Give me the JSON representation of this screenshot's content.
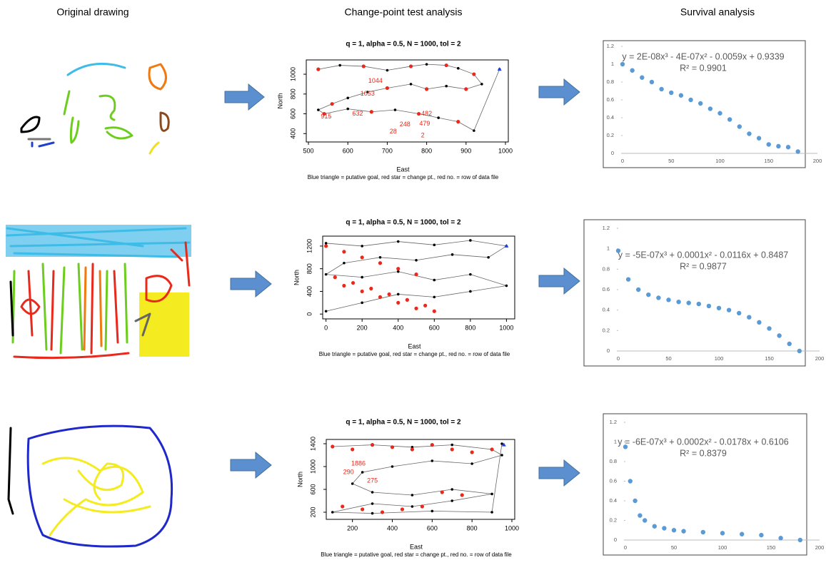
{
  "headers": [
    "Original drawing",
    "Change-point test analysis",
    "Survival analysis"
  ],
  "chart_data": [
    {
      "type": "line",
      "title": "q = 1, alpha = 0.5, N = 1000, tol = 2",
      "x_label": "East",
      "y_label": "North",
      "caption": "Blue triangle = putative goal, red star = change pt., red no. = row of data file",
      "xlim": [
        480,
        1000
      ],
      "ylim": [
        330,
        1130
      ],
      "xticks": [
        500,
        600,
        700,
        800,
        900,
        1000
      ],
      "yticks": [
        400,
        600,
        800,
        1000
      ],
      "series": [
        {
          "name": "path",
          "color": "#000000",
          "x": [
            525,
            580,
            640,
            700,
            760,
            800,
            850,
            880,
            920,
            940,
            900,
            850,
            800,
            760,
            700,
            650,
            600,
            560,
            525,
            540,
            600,
            660,
            720,
            780,
            830,
            880,
            920,
            985
          ],
          "values": [
            1050,
            1090,
            1080,
            1040,
            1080,
            1100,
            1090,
            1060,
            1000,
            900,
            850,
            880,
            850,
            900,
            860,
            820,
            760,
            700,
            640,
            600,
            650,
            620,
            640,
            600,
            560,
            520,
            430,
            1050
          ]
        },
        {
          "name": "change points",
          "color": "#e8291c",
          "x": [
            525,
            640,
            760,
            850,
            920,
            900,
            800,
            700,
            560,
            540,
            660,
            780,
            880
          ],
          "values": [
            1050,
            1080,
            1080,
            1090,
            1000,
            850,
            850,
            860,
            700,
            600,
            620,
            600,
            520
          ]
        }
      ],
      "goal": {
        "x": 985,
        "y": 1050,
        "color": "#2040e0"
      },
      "annotations": [
        {
          "text": "1044",
          "x": 670,
          "y": 930
        },
        {
          "text": "1053",
          "x": 650,
          "y": 800
        },
        {
          "text": "632",
          "x": 625,
          "y": 600
        },
        {
          "text": "482",
          "x": 800,
          "y": 600
        },
        {
          "text": "479",
          "x": 795,
          "y": 500
        },
        {
          "text": "248",
          "x": 745,
          "y": 490
        },
        {
          "text": "28",
          "x": 715,
          "y": 420
        },
        {
          "text": "2",
          "x": 790,
          "y": 380
        },
        {
          "text": "915",
          "x": 545,
          "y": 570
        }
      ]
    },
    {
      "type": "scatter",
      "annotations": [
        "y = 2E-08x³ - 4E-07x² - 0.0059x + 0.9339",
        "R² = 0.9901"
      ],
      "xlim": [
        0,
        200
      ],
      "ylim": [
        0,
        1.2
      ],
      "xticks": [
        0,
        50,
        100,
        150,
        200
      ],
      "yticks": [
        0,
        0.2,
        0.4,
        0.6,
        0.8,
        1,
        1.2
      ],
      "color": "#5b9bd5",
      "x": [
        0,
        10,
        20,
        30,
        40,
        50,
        60,
        70,
        80,
        90,
        100,
        110,
        120,
        130,
        140,
        150,
        160,
        170,
        180
      ],
      "values": [
        1,
        0.93,
        0.85,
        0.8,
        0.72,
        0.68,
        0.65,
        0.6,
        0.56,
        0.5,
        0.45,
        0.38,
        0.3,
        0.22,
        0.17,
        0.1,
        0.08,
        0.07,
        0.02
      ]
    },
    {
      "type": "line",
      "title": "q = 1, alpha = 0.5, N = 1000, tol = 2",
      "x_label": "East",
      "y_label": "North",
      "caption": "Blue triangle = putative goal, red star = change pt., red no. = row of data file",
      "xlim": [
        -50,
        1030
      ],
      "ylim": [
        -60,
        1350
      ],
      "xticks": [
        0,
        200,
        400,
        600,
        800,
        1000
      ],
      "yticks": [
        0,
        400,
        800,
        1200
      ],
      "series": [
        {
          "name": "path",
          "color": "#000000",
          "x": [
            0,
            200,
            400,
            600,
            800,
            1000,
            900,
            700,
            500,
            300,
            100,
            0,
            200,
            400,
            600,
            800,
            1000,
            800,
            600,
            400,
            200,
            0
          ],
          "values": [
            1250,
            1200,
            1280,
            1220,
            1300,
            1200,
            1000,
            1050,
            950,
            1000,
            900,
            700,
            650,
            750,
            600,
            700,
            500,
            400,
            300,
            350,
            200,
            50
          ]
        },
        {
          "name": "change points",
          "color": "#e8291c",
          "x": [
            0,
            100,
            200,
            300,
            400,
            500,
            100,
            200,
            300,
            400,
            500,
            600,
            50,
            150,
            250,
            350,
            450,
            550
          ],
          "values": [
            1200,
            1100,
            1000,
            900,
            800,
            700,
            500,
            400,
            300,
            200,
            100,
            50,
            650,
            550,
            450,
            350,
            250,
            150
          ]
        }
      ],
      "goal": {
        "x": 1000,
        "y": 1200,
        "color": "#2040e0"
      }
    },
    {
      "type": "scatter",
      "annotations": [
        "y = -5E-07x³ + 0.0001x² - 0.0116x + 0.8487",
        "R² = 0.9877"
      ],
      "xlim": [
        0,
        200
      ],
      "ylim": [
        0,
        1.2
      ],
      "xticks": [
        0,
        50,
        100,
        150,
        200
      ],
      "yticks": [
        0,
        0.2,
        0.4,
        0.6,
        0.8,
        1,
        1.2
      ],
      "color": "#5b9bd5",
      "x": [
        0,
        10,
        20,
        30,
        40,
        50,
        60,
        70,
        80,
        90,
        100,
        110,
        120,
        130,
        140,
        150,
        160,
        170,
        180
      ],
      "values": [
        0.98,
        0.7,
        0.6,
        0.55,
        0.52,
        0.5,
        0.48,
        0.47,
        0.46,
        0.44,
        0.42,
        0.4,
        0.37,
        0.33,
        0.28,
        0.22,
        0.15,
        0.07,
        0
      ]
    },
    {
      "type": "line",
      "title": "q = 1, alpha = 0.5, N = 1000, tol = 2",
      "x_label": "East",
      "y_label": "North",
      "caption": "Blue triangle = putative goal, red star = change pt., red no. = row of data file",
      "xlim": [
        40,
        1000
      ],
      "ylim": [
        100,
        1450
      ],
      "xticks": [
        200,
        400,
        600,
        800,
        1000
      ],
      "yticks": [
        200,
        600,
        1000,
        1400
      ],
      "series": [
        {
          "name": "path",
          "color": "#000000",
          "x": [
            100,
            300,
            500,
            700,
            900,
            950,
            800,
            600,
            400,
            250,
            200,
            300,
            500,
            700,
            900,
            700,
            500,
            300,
            100,
            300,
            600,
            900,
            950
          ],
          "values": [
            1350,
            1380,
            1340,
            1380,
            1300,
            1200,
            1050,
            1100,
            1000,
            900,
            700,
            550,
            500,
            600,
            520,
            400,
            300,
            350,
            200,
            180,
            220,
            200,
            1400
          ]
        },
        {
          "name": "change points",
          "color": "#e8291c",
          "x": [
            100,
            200,
            300,
            400,
            500,
            600,
            700,
            800,
            900,
            150,
            250,
            350,
            450,
            550,
            650,
            750
          ],
          "values": [
            1350,
            1300,
            1380,
            1340,
            1300,
            1380,
            1300,
            1250,
            1300,
            300,
            250,
            200,
            250,
            300,
            550,
            500
          ]
        }
      ],
      "goal": {
        "x": 960,
        "y": 1380,
        "color": "#2040e0"
      },
      "annotations": [
        {
          "text": "1886",
          "x": 230,
          "y": 1050
        },
        {
          "text": "290",
          "x": 180,
          "y": 900
        },
        {
          "text": "275",
          "x": 300,
          "y": 750
        }
      ]
    },
    {
      "type": "scatter",
      "annotations": [
        "y = -6E-07x³ + 0.0002x² - 0.0178x + 0.6106",
        "R² = 0.8379"
      ],
      "xlim": [
        0,
        200
      ],
      "ylim": [
        0,
        1.2
      ],
      "xticks": [
        0,
        50,
        100,
        150,
        200
      ],
      "yticks": [
        0,
        0.2,
        0.4,
        0.6,
        0.8,
        1,
        1.2
      ],
      "color": "#5b9bd5",
      "x": [
        0,
        5,
        10,
        15,
        20,
        30,
        40,
        50,
        60,
        80,
        100,
        120,
        140,
        160,
        180
      ],
      "values": [
        0.95,
        0.6,
        0.4,
        0.25,
        0.2,
        0.14,
        0.12,
        0.1,
        0.09,
        0.08,
        0.07,
        0.06,
        0.05,
        0.02,
        0
      ]
    }
  ]
}
